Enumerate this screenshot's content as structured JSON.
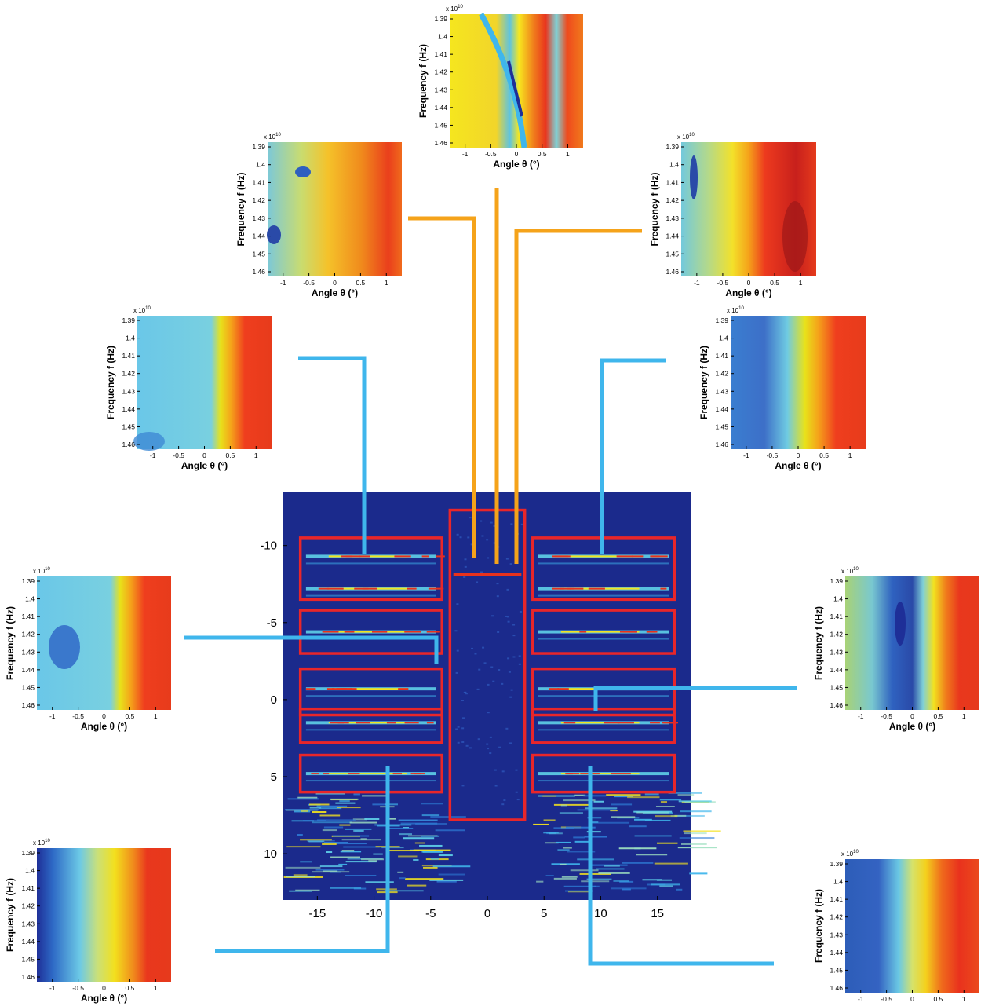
{
  "chart_data": [
    {
      "type": "heatmap",
      "role": "main-image",
      "xticks": [
        "-15",
        "-10",
        "-5",
        "0",
        "5",
        "10",
        "15"
      ],
      "yticks": [
        "-10",
        "-5",
        "0",
        "5",
        "10"
      ],
      "xlim": [
        -18,
        18
      ],
      "ylim": [
        -13.5,
        13
      ],
      "colormap": "jet",
      "boxes": [
        {
          "x": [
            -16.5,
            -4
          ],
          "y": [
            -10.5,
            -6.5
          ]
        },
        {
          "x": [
            -16.5,
            -4
          ],
          "y": [
            -5.8,
            -3.0
          ]
        },
        {
          "x": [
            -16.5,
            -4
          ],
          "y": [
            -2.0,
            1.0
          ]
        },
        {
          "x": [
            -16.5,
            -4
          ],
          "y": [
            0.6,
            2.8
          ]
        },
        {
          "x": [
            -16.5,
            -4
          ],
          "y": [
            3.6,
            6.0
          ]
        },
        {
          "x": [
            4,
            16.5
          ],
          "y": [
            -10.5,
            -6.5
          ]
        },
        {
          "x": [
            4,
            16.5
          ],
          "y": [
            -5.8,
            -3.0
          ]
        },
        {
          "x": [
            4,
            16.5
          ],
          "y": [
            -2.0,
            1.0
          ]
        },
        {
          "x": [
            4,
            16.5
          ],
          "y": [
            0.6,
            2.8
          ]
        },
        {
          "x": [
            4,
            16.5
          ],
          "y": [
            3.6,
            6.0
          ]
        },
        {
          "x": [
            -3.3,
            3.3
          ],
          "y": [
            -12.3,
            7.8
          ]
        }
      ]
    },
    {
      "type": "heatmap",
      "id": "top-center",
      "xlabel": "Angle  θ (°)",
      "ylabel": "Frequency  f (Hz)",
      "exponent": "x 10",
      "exponent_power": "10",
      "xticks": [
        "-1",
        "-0.5",
        "0",
        "0.5",
        "1"
      ],
      "yticks": [
        "1.39",
        "1.4",
        "1.41",
        "1.42",
        "1.43",
        "1.44",
        "1.45",
        "1.46"
      ],
      "xlim": [
        -1.3,
        1.3
      ]
    },
    {
      "type": "heatmap",
      "id": "upper-left",
      "xlabel": "Angle  θ (°)",
      "ylabel": "Frequency  f (Hz)",
      "exponent": "x 10",
      "exponent_power": "10",
      "xticks": [
        "-1",
        "-0.5",
        "0",
        "0.5",
        "1"
      ],
      "yticks": [
        "1.39",
        "1.4",
        "1.41",
        "1.42",
        "1.43",
        "1.44",
        "1.45",
        "1.46"
      ],
      "xlim": [
        -1.3,
        1.3
      ]
    },
    {
      "type": "heatmap",
      "id": "upper-right",
      "xlabel": "Angle  θ (°)",
      "ylabel": "Frequency  f (Hz)",
      "exponent": "x 10",
      "exponent_power": "10",
      "xticks": [
        "-1",
        "-0.5",
        "0",
        "0.5",
        "1"
      ],
      "yticks": [
        "1.39",
        "1.4",
        "1.41",
        "1.42",
        "1.43",
        "1.44",
        "1.45",
        "1.46"
      ],
      "xlim": [
        -1.3,
        1.3
      ]
    },
    {
      "type": "heatmap",
      "id": "middle-left",
      "xlabel": "Angle  θ (°)",
      "ylabel": "Frequency  f (Hz)",
      "exponent": "x 10",
      "exponent_power": "10",
      "xticks": [
        "-1",
        "-0.5",
        "0",
        "0.5",
        "1"
      ],
      "yticks": [
        "1.39",
        "1.4",
        "1.41",
        "1.42",
        "1.43",
        "1.44",
        "1.45",
        "1.46"
      ],
      "xlim": [
        -1.3,
        1.3
      ]
    },
    {
      "type": "heatmap",
      "id": "middle-right",
      "xlabel": "Angle  θ (°)",
      "ylabel": "Frequency  f (Hz)",
      "exponent": "x 10",
      "exponent_power": "10",
      "xticks": [
        "-1",
        "-0.5",
        "0",
        "0.5",
        "1"
      ],
      "yticks": [
        "1.39",
        "1.4",
        "1.41",
        "1.42",
        "1.43",
        "1.44",
        "1.45",
        "1.46"
      ],
      "xlim": [
        -1.3,
        1.3
      ]
    },
    {
      "type": "heatmap",
      "id": "lower-left",
      "xlabel": "Angle  θ (°)",
      "ylabel": "Frequency  f (Hz)",
      "exponent": "x 10",
      "exponent_power": "10",
      "xticks": [
        "-1",
        "-0.5",
        "0",
        "0.5",
        "1"
      ],
      "yticks": [
        "1.39",
        "1.4",
        "1.41",
        "1.42",
        "1.43",
        "1.44",
        "1.45",
        "1.46"
      ],
      "xlim": [
        -1.3,
        1.3
      ]
    },
    {
      "type": "heatmap",
      "id": "right-lower",
      "xlabel": "Angle  θ (°)",
      "ylabel": "Frequency  f (Hz)",
      "exponent": "x 10",
      "exponent_power": "10",
      "xticks": [
        "-1",
        "-0.5",
        "0",
        "0.5",
        "1"
      ],
      "yticks": [
        "1.39",
        "1.4",
        "1.41",
        "1.42",
        "1.43",
        "1.44",
        "1.45",
        "1.46"
      ],
      "xlim": [
        -1.3,
        1.3
      ]
    },
    {
      "type": "heatmap",
      "id": "bottom-left",
      "xlabel": "Angle  θ (°)",
      "ylabel": "Frequency  f (Hz)",
      "exponent": "x 10",
      "exponent_power": "10",
      "xticks": [
        "-1",
        "-0.5",
        "0",
        "0.5",
        "1"
      ],
      "yticks": [
        "1.39",
        "1.4",
        "1.41",
        "1.42",
        "1.43",
        "1.44",
        "1.45",
        "1.46"
      ],
      "xlim": [
        -1.3,
        1.3
      ]
    },
    {
      "type": "heatmap",
      "id": "bottom-right",
      "xlabel": "",
      "ylabel": "Frequency  f (Hz)",
      "exponent": "x 10",
      "exponent_power": "10",
      "xticks": [
        "-1",
        "-0.5",
        "0",
        "0.5",
        "1"
      ],
      "yticks": [
        "1.39",
        "1.4",
        "1.41",
        "1.42",
        "1.43",
        "1.44",
        "1.45",
        "1.46"
      ],
      "xlim": [
        -1.3,
        1.3
      ]
    }
  ],
  "colors": {
    "orange_connector": "#f5a31a",
    "blue_connector": "#3fb6ec",
    "box": "#e8262a",
    "background_dark": "#1b2a8c"
  }
}
